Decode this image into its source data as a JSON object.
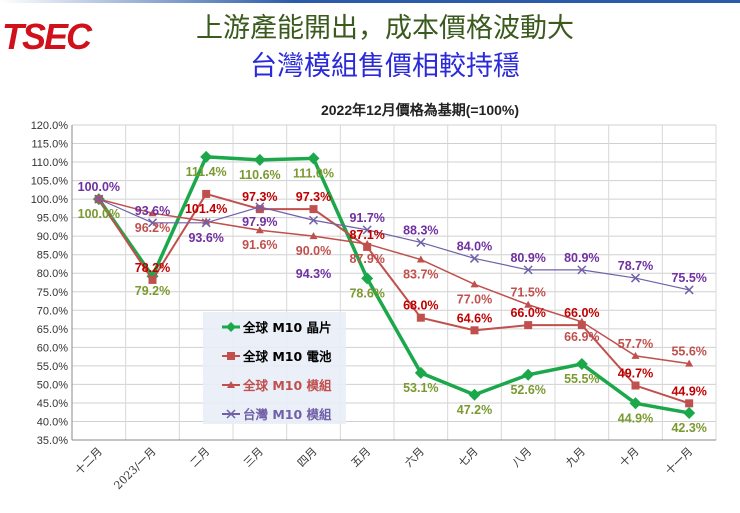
{
  "header": {
    "logo": "TSEC",
    "title_line1": "上游產能開出，成本價格波動大",
    "title_line2": "台灣模組售價相較持穩"
  },
  "chart_data": {
    "type": "line",
    "title": "2022年12月價格為基期(=100%)",
    "categories": [
      "十二月",
      "2023/一月",
      "二月",
      "三月",
      "四月",
      "五月",
      "六月",
      "七月",
      "八月",
      "九月",
      "十月",
      "十一月"
    ],
    "ylim": [
      35,
      120
    ],
    "yticks": [
      "35.0%",
      "40.0%",
      "45.0%",
      "50.0%",
      "55.0%",
      "60.0%",
      "65.0%",
      "70.0%",
      "75.0%",
      "80.0%",
      "85.0%",
      "90.0%",
      "95.0%",
      "100.0%",
      "105.0%",
      "110.0%",
      "115.0%",
      "120.0%"
    ],
    "grid": true,
    "legend_position": "center-left",
    "series": [
      {
        "name": "全球 M10 晶片",
        "color": "#1aa84a",
        "label_color": "#7a9a30",
        "marker": "diamond",
        "values": [
          100.0,
          79.2,
          111.4,
          110.6,
          111.0,
          78.6,
          53.1,
          47.2,
          52.6,
          55.5,
          44.9,
          42.3
        ],
        "labels": [
          "100.0%",
          "79.2%",
          "111.4%",
          "110.6%",
          "111.0%",
          "78.6%",
          "53.1%",
          "47.2%",
          "52.6%",
          "55.5%",
          "44.9%",
          "42.3%"
        ]
      },
      {
        "name": "全球 M10 電池",
        "color": "#c0504d",
        "label_color": "#c00000",
        "marker": "square",
        "values": [
          100.0,
          78.2,
          101.4,
          97.3,
          97.3,
          87.1,
          68.0,
          64.6,
          66.0,
          66.0,
          49.7,
          44.9
        ],
        "labels": [
          "",
          "78.2%",
          "101.4%",
          "97.3%",
          "97.3%",
          "87.1%",
          "68.0%",
          "64.6%",
          "66.0%",
          "66.0%",
          "49.7%",
          "44.9%"
        ]
      },
      {
        "name": "全球 M10 模組",
        "color": "#c0504d",
        "label_color": "#c0504d",
        "marker": "triangle",
        "values": [
          100.0,
          96.2,
          94.0,
          91.6,
          90.0,
          87.9,
          83.7,
          77.0,
          71.5,
          66.9,
          57.7,
          55.6
        ],
        "labels": [
          "",
          "96.2%",
          "",
          "91.6%",
          "90.0%",
          "87.9%",
          "83.7%",
          "77.0%",
          "71.5%",
          "66.9%",
          "57.7%",
          "55.6%"
        ]
      },
      {
        "name": "台灣 M10 模組",
        "color": "#7060a8",
        "label_color": "#7030a0",
        "marker": "x",
        "values": [
          100.0,
          93.6,
          93.6,
          97.9,
          94.3,
          91.7,
          88.3,
          84.0,
          80.9,
          80.9,
          78.7,
          75.5
        ],
        "labels": [
          "100.0%",
          "93.6%",
          "93.6%",
          "97.9%",
          "94.3%",
          "91.7%",
          "88.3%",
          "84.0%",
          "80.9%",
          "80.9%",
          "78.7%",
          "75.5%"
        ]
      }
    ]
  }
}
